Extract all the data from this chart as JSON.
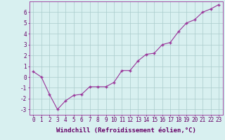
{
  "x": [
    0,
    1,
    2,
    3,
    4,
    5,
    6,
    7,
    8,
    9,
    10,
    11,
    12,
    13,
    14,
    15,
    16,
    17,
    18,
    19,
    20,
    21,
    22,
    23
  ],
  "y": [
    0.5,
    0.0,
    -1.6,
    -3.0,
    -2.2,
    -1.7,
    -1.6,
    -0.9,
    -0.9,
    -0.9,
    -0.5,
    0.6,
    0.6,
    1.5,
    2.1,
    2.2,
    3.0,
    3.2,
    4.2,
    5.0,
    5.3,
    6.0,
    6.3,
    6.7
  ],
  "line_color": "#993399",
  "marker": "+",
  "marker_size": 3,
  "line_width": 0.8,
  "bg_color": "#d8f0f0",
  "grid_color": "#aacccc",
  "xlabel": "Windchill (Refroidissement éolien,°C)",
  "xlim": [
    -0.5,
    23.5
  ],
  "ylim": [
    -3.5,
    7.0
  ],
  "yticks": [
    -3,
    -2,
    -1,
    0,
    1,
    2,
    3,
    4,
    5,
    6
  ],
  "xticks": [
    0,
    1,
    2,
    3,
    4,
    5,
    6,
    7,
    8,
    9,
    10,
    11,
    12,
    13,
    14,
    15,
    16,
    17,
    18,
    19,
    20,
    21,
    22,
    23
  ],
  "tick_label_color": "#660066",
  "tick_label_size": 5.5,
  "xlabel_size": 6.5,
  "xlabel_color": "#660066",
  "axis_color": "#993399",
  "markeredgewidth": 1.0
}
